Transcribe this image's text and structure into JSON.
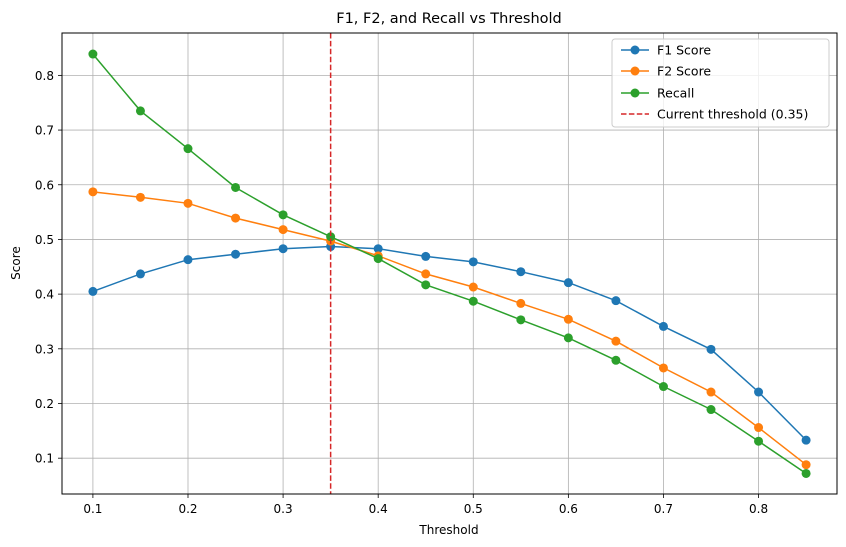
{
  "chart_data": {
    "type": "line",
    "title": "F1, F2, and Recall vs Threshold",
    "xlabel": "Threshold",
    "ylabel": "Score",
    "xlim": [
      0.0675,
      0.8825
    ],
    "ylim": [
      0.0345,
      0.8775
    ],
    "xticks": [
      "0.1",
      "0.2",
      "0.3",
      "0.4",
      "0.5",
      "0.6",
      "0.7",
      "0.8"
    ],
    "yticks": [
      "0.1",
      "0.2",
      "0.3",
      "0.4",
      "0.5",
      "0.6",
      "0.7",
      "0.8"
    ],
    "grid": true,
    "legend_position": "top-right",
    "x": [
      0.1,
      0.15,
      0.2,
      0.25,
      0.3,
      0.35,
      0.4,
      0.45,
      0.5,
      0.55,
      0.6,
      0.65,
      0.7,
      0.75,
      0.8,
      0.85
    ],
    "series": [
      {
        "name": "F1 Score",
        "color": "#1f77b4",
        "values": [
          0.405,
          0.437,
          0.463,
          0.473,
          0.483,
          0.487,
          0.483,
          0.469,
          0.459,
          0.441,
          0.421,
          0.388,
          0.341,
          0.299,
          0.221,
          0.133
        ]
      },
      {
        "name": "F2 Score",
        "color": "#ff7f0e",
        "values": [
          0.587,
          0.577,
          0.566,
          0.539,
          0.518,
          0.497,
          0.47,
          0.437,
          0.413,
          0.383,
          0.354,
          0.314,
          0.265,
          0.221,
          0.156,
          0.088
        ]
      },
      {
        "name": "Recall",
        "color": "#2ca02c",
        "values": [
          0.839,
          0.735,
          0.666,
          0.595,
          0.545,
          0.505,
          0.465,
          0.417,
          0.387,
          0.353,
          0.32,
          0.279,
          0.231,
          0.189,
          0.131,
          0.072
        ]
      }
    ],
    "reference_line": {
      "label": "Current threshold (0.35)",
      "x": 0.35,
      "color": "#d62728",
      "style": "dashed"
    }
  }
}
